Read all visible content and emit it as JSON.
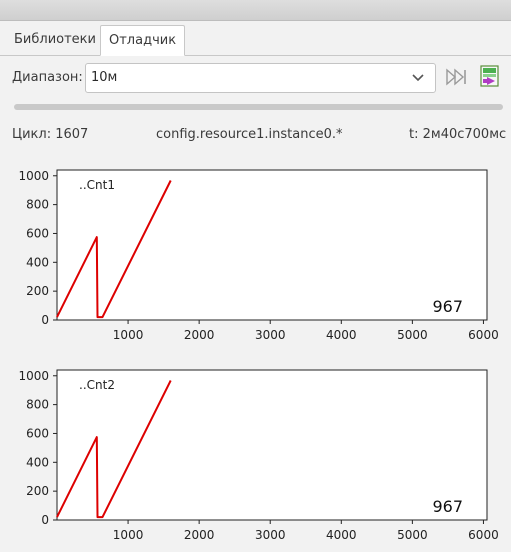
{
  "tabs": [
    {
      "label": "Библиотеки",
      "active": false
    },
    {
      "label": "Отладчик",
      "active": true
    }
  ],
  "range": {
    "label": "Диапазон:",
    "value": "10м"
  },
  "status": {
    "cycle": "Цикл: 1607",
    "path": "config.resource1.instance0.*",
    "time": "t: 2м40с700мс"
  },
  "icons": {
    "skip": "skip-to-end-icon",
    "export": "export-chart-icon",
    "dropdown": "chevron-down-icon"
  },
  "colors": {
    "series": "#dd0000",
    "accent_export": "#2fa52f",
    "accent_export2": "#b03cc4"
  },
  "chart_data": [
    {
      "type": "line",
      "series": [
        {
          "name": "..Cnt1",
          "x": [
            0,
            560,
            570,
            640,
            1600
          ],
          "y": [
            20,
            575,
            20,
            20,
            967
          ]
        }
      ],
      "current_value": "967",
      "xlim": [
        0,
        6050
      ],
      "ylim": [
        0,
        1040
      ],
      "xticks": [
        1000,
        2000,
        3000,
        4000,
        5000,
        6000
      ],
      "yticks": [
        0,
        200,
        400,
        600,
        800,
        1000
      ],
      "grid": false,
      "legend": "top-left"
    },
    {
      "type": "line",
      "series": [
        {
          "name": "..Cnt2",
          "x": [
            0,
            560,
            570,
            640,
            1600
          ],
          "y": [
            20,
            575,
            20,
            20,
            967
          ]
        }
      ],
      "current_value": "967",
      "xlim": [
        0,
        6050
      ],
      "ylim": [
        0,
        1040
      ],
      "xticks": [
        1000,
        2000,
        3000,
        4000,
        5000,
        6000
      ],
      "yticks": [
        0,
        200,
        400,
        600,
        800,
        1000
      ],
      "grid": false,
      "legend": "top-left"
    }
  ]
}
